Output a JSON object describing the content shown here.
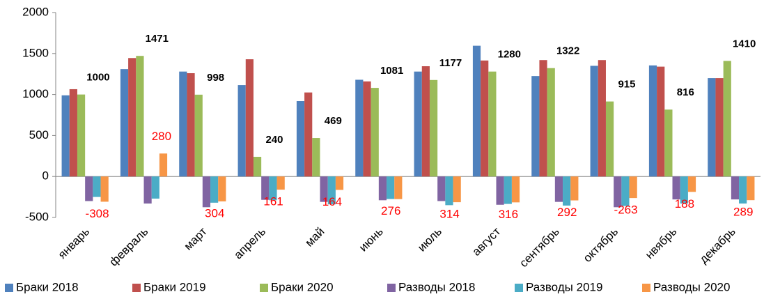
{
  "chart_data": {
    "type": "bar",
    "categories": [
      "январь",
      "февраль",
      "март",
      "апрель",
      "май",
      "июнь",
      "июль",
      "август",
      "сентябрь",
      "октябрь",
      "нвябрь",
      "декабрь"
    ],
    "series": [
      {
        "name": "Браки 2018",
        "color": "#4f81bd",
        "values": [
          990,
          1310,
          1280,
          1115,
          920,
          1180,
          1280,
          1595,
          1225,
          1350,
          1355,
          1200
        ]
      },
      {
        "name": "Браки 2019",
        "color": "#c0504d",
        "values": [
          1065,
          1445,
          1260,
          1430,
          1025,
          1160,
          1345,
          1415,
          1420,
          1420,
          1340,
          1200
        ]
      },
      {
        "name": "Браки 2020",
        "color": "#9bbb59",
        "values": [
          1000,
          1471,
          998,
          240,
          469,
          1081,
          1177,
          1280,
          1322,
          915,
          816,
          1410
        ],
        "show_labels": true,
        "label_color": "#000000"
      },
      {
        "name": "Разводы 2018",
        "color": "#8064a2",
        "values": [
          -300,
          -330,
          -375,
          -285,
          -310,
          -290,
          -300,
          -345,
          -310,
          -375,
          -280,
          -280
        ]
      },
      {
        "name": "Разводы 2019",
        "color": "#4bacc6",
        "values": [
          -250,
          -270,
          -320,
          -290,
          -340,
          -275,
          -350,
          -335,
          -355,
          -360,
          -330,
          -330
        ]
      },
      {
        "name": "Разводы 2020",
        "color": "#f79646",
        "values": [
          -308,
          280,
          -304,
          -161,
          -164,
          -276,
          -314,
          -316,
          -292,
          -263,
          -188,
          -289
        ],
        "show_labels": true,
        "label_color": "#ff0000",
        "value_labels": [
          "-308",
          "280",
          "304",
          "161",
          "164",
          "276",
          "314",
          "316",
          "292",
          "-263",
          "188",
          "289"
        ]
      }
    ],
    "ylim": [
      -500,
      2000
    ],
    "yticks": [
      -500,
      0,
      500,
      1000,
      1500,
      2000
    ],
    "grid": false,
    "legend": "bottom"
  }
}
